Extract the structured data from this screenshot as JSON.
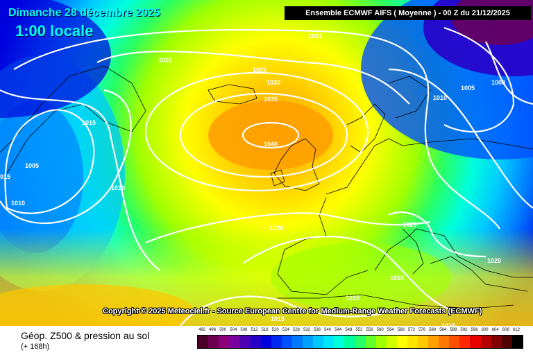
{
  "header": {
    "date": "Dimanche 28 décembre 2025",
    "time": "1:00 locale",
    "model": "Ensemble ECMWF AIFS  ( Moyenne )  - 00 Z du 21/12/2025"
  },
  "copyright": "Copyright © 2025 Meteociel.fr - Source European Centre for Medium-Range Weather Forecasts (ECMWF)",
  "footer": {
    "title": "Géop. Z500 & pression au sol",
    "subtitle": "(+ 168h)"
  },
  "scale": {
    "values": [
      "492",
      "496",
      "500",
      "504",
      "508",
      "512",
      "516",
      "520",
      "524",
      "528",
      "532",
      "536",
      "540",
      "544",
      "548",
      "552",
      "556",
      "560",
      "564",
      "568",
      "572",
      "576",
      "580",
      "584",
      "588",
      "592",
      "596",
      "600",
      "604",
      "608",
      "612"
    ],
    "colors": [
      "#4b0028",
      "#6e0050",
      "#8c007a",
      "#7a00a0",
      "#5000b4",
      "#2800c8",
      "#0000dc",
      "#0028f0",
      "#0050ff",
      "#0078ff",
      "#00a0ff",
      "#00c8ff",
      "#00e6ff",
      "#00ffdc",
      "#00ffa0",
      "#28ff64",
      "#64ff28",
      "#a0ff00",
      "#d2ff00",
      "#ffff00",
      "#ffe600",
      "#ffc800",
      "#ffa000",
      "#ff7800",
      "#ff5000",
      "#ff2800",
      "#e60000",
      "#b40000",
      "#820000",
      "#500000",
      "#000000"
    ]
  },
  "isobars": [
    {
      "label": "1015"
    },
    {
      "label": "1025"
    },
    {
      "label": "1025"
    },
    {
      "label": "1030"
    },
    {
      "label": "1035"
    },
    {
      "label": "1040"
    },
    {
      "label": "1015"
    },
    {
      "label": "1005"
    },
    {
      "label": "1010"
    },
    {
      "label": "1010"
    },
    {
      "label": "015"
    },
    {
      "label": "1020"
    },
    {
      "label": "1025"
    },
    {
      "label": "1020"
    },
    {
      "label": "1015"
    },
    {
      "label": "1015"
    },
    {
      "label": "1015"
    },
    {
      "label": "1015"
    },
    {
      "label": "1010"
    },
    {
      "label": "1005"
    },
    {
      "label": "1000"
    }
  ]
}
